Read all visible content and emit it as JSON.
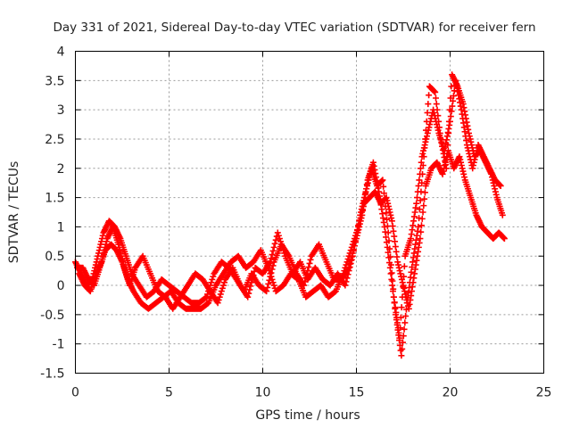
{
  "chart_data": {
    "type": "scatter",
    "title": "Day 331 of 2021, Sidereal Day-to-day VTEC variation (SDTVAR) for receiver fern",
    "xlabel": "GPS time / hours",
    "ylabel": "SDTVAR / TECUs",
    "xlim": [
      0,
      25
    ],
    "ylim": [
      -1.5,
      4
    ],
    "xticks": [
      "0",
      "5",
      "10",
      "15",
      "20",
      "25"
    ],
    "yticks": [
      "-1.5",
      "-1",
      "-0.5",
      "0",
      "0.5",
      "1",
      "1.5",
      "2",
      "2.5",
      "3",
      "3.5",
      "4"
    ],
    "grid": true,
    "marker": "plus",
    "color": "#ff0000",
    "series": [
      {
        "x": [
          0.0,
          0.3,
          0.6,
          0.9,
          1.2,
          1.5,
          1.8,
          2.1,
          2.4,
          2.7,
          3.0,
          3.4,
          3.8,
          4.2,
          4.6,
          5.0,
          5.4,
          5.8,
          6.2,
          6.6,
          7.0,
          7.4,
          7.8,
          8.2,
          8.6,
          9.0,
          9.4,
          9.8,
          10.2,
          10.6,
          11.0,
          11.4,
          11.8,
          12.2,
          12.6,
          13.0,
          13.4,
          13.8,
          14.2,
          14.6,
          15.0,
          15.3,
          15.6,
          15.9,
          16.2,
          16.5,
          16.8,
          17.1,
          17.4,
          17.7,
          18.0,
          18.3,
          18.6,
          18.9,
          19.2,
          19.5,
          19.8,
          20.1,
          20.4,
          20.7,
          21.0,
          21.3,
          21.6,
          21.9,
          22.2,
          22.5,
          22.8
        ],
        "y": [
          0.4,
          0.2,
          0.0,
          0.1,
          0.5,
          0.9,
          1.1,
          1.0,
          0.8,
          0.5,
          0.2,
          0.0,
          -0.2,
          -0.1,
          0.1,
          0.0,
          -0.1,
          -0.2,
          -0.3,
          -0.3,
          -0.2,
          0.2,
          0.4,
          0.3,
          0.1,
          -0.1,
          0.2,
          0.0,
          -0.1,
          0.4,
          0.7,
          0.5,
          0.2,
          0.0,
          0.5,
          0.7,
          0.4,
          0.1,
          0.1,
          0.3,
          0.8,
          1.2,
          1.8,
          2.1,
          1.6,
          1.0,
          0.3,
          -0.5,
          -1.2,
          -0.3,
          0.4,
          1.0,
          2.2,
          3.4,
          3.3,
          2.5,
          2.0,
          3.6,
          3.4,
          3.1,
          2.6,
          2.2,
          2.3,
          2.1,
          1.9,
          1.5,
          1.2
        ]
      },
      {
        "x": [
          0.1,
          0.4,
          0.7,
          1.0,
          1.3,
          1.6,
          1.9,
          2.2,
          2.5,
          2.8,
          3.1,
          3.5,
          3.9,
          4.3,
          4.7,
          5.1,
          5.5,
          5.9,
          6.3,
          6.7,
          7.1,
          7.5,
          7.9,
          8.3,
          8.7,
          9.1,
          9.5,
          9.9,
          10.3,
          10.7,
          11.1,
          11.5,
          11.9,
          12.3,
          12.7,
          13.1,
          13.5,
          13.9,
          14.3,
          14.7,
          15.1,
          15.4,
          15.7,
          16.0,
          16.3,
          16.6,
          16.9,
          17.2,
          17.5,
          17.8,
          18.1,
          18.4,
          18.7,
          19.0,
          19.3,
          19.6,
          19.9,
          20.2,
          20.5,
          20.8,
          21.1,
          21.4,
          21.7,
          22.0,
          22.3,
          22.6,
          22.9
        ],
        "y": [
          0.3,
          0.3,
          0.1,
          0.0,
          0.3,
          0.6,
          0.7,
          0.6,
          0.4,
          0.1,
          -0.1,
          -0.3,
          -0.4,
          -0.3,
          -0.2,
          -0.1,
          -0.3,
          -0.4,
          -0.4,
          -0.4,
          -0.3,
          0.0,
          0.2,
          0.4,
          0.5,
          0.3,
          0.4,
          0.6,
          0.3,
          -0.1,
          0.0,
          0.2,
          0.1,
          -0.2,
          -0.1,
          0.0,
          -0.2,
          -0.1,
          0.2,
          0.6,
          1.0,
          1.4,
          1.5,
          1.6,
          1.4,
          1.5,
          1.1,
          0.4,
          0.0,
          -0.4,
          0.2,
          0.8,
          1.7,
          2.0,
          2.1,
          1.9,
          2.3,
          2.0,
          2.2,
          1.8,
          1.5,
          1.2,
          1.0,
          0.9,
          0.8,
          0.9,
          0.8
        ]
      },
      {
        "x": [
          0.2,
          0.5,
          0.8,
          1.1,
          1.4,
          1.7,
          2.0,
          2.3,
          2.6,
          2.9,
          3.2,
          3.6,
          4.0,
          4.4,
          4.8,
          5.2,
          5.6,
          6.0,
          6.4,
          6.8,
          7.2,
          7.6,
          8.0,
          8.4,
          8.8,
          9.2,
          9.6,
          10.0,
          10.4,
          10.8,
          11.2,
          11.6,
          12.0,
          12.4,
          12.8,
          13.2,
          13.6,
          14.0,
          14.4,
          14.8,
          15.2,
          15.5,
          15.8,
          16.1,
          16.4,
          16.7,
          17.0,
          17.3,
          17.6,
          17.9,
          18.2,
          18.5,
          18.8,
          19.1,
          19.4,
          19.7,
          20.0,
          20.3,
          20.6,
          20.9,
          21.2,
          21.5,
          21.8,
          22.1,
          22.4,
          22.7
        ],
        "y": [
          0.2,
          0.0,
          -0.1,
          0.2,
          0.4,
          0.8,
          1.0,
          0.7,
          0.3,
          0.0,
          0.3,
          0.5,
          0.2,
          -0.1,
          -0.2,
          -0.4,
          -0.2,
          0.0,
          0.2,
          0.1,
          -0.1,
          -0.3,
          0.1,
          0.3,
          0.0,
          -0.2,
          0.3,
          0.2,
          0.4,
          0.9,
          0.5,
          0.2,
          0.4,
          0.1,
          0.3,
          0.1,
          0.0,
          0.2,
          0.0,
          0.5,
          1.2,
          1.6,
          2.0,
          1.7,
          1.8,
          0.9,
          -0.2,
          -0.9,
          0.5,
          0.8,
          1.4,
          2.2,
          2.6,
          3.0,
          2.6,
          2.3,
          2.8,
          3.5,
          3.0,
          2.4,
          2.0,
          2.4,
          2.2,
          2.0,
          1.8,
          1.7
        ]
      }
    ]
  }
}
